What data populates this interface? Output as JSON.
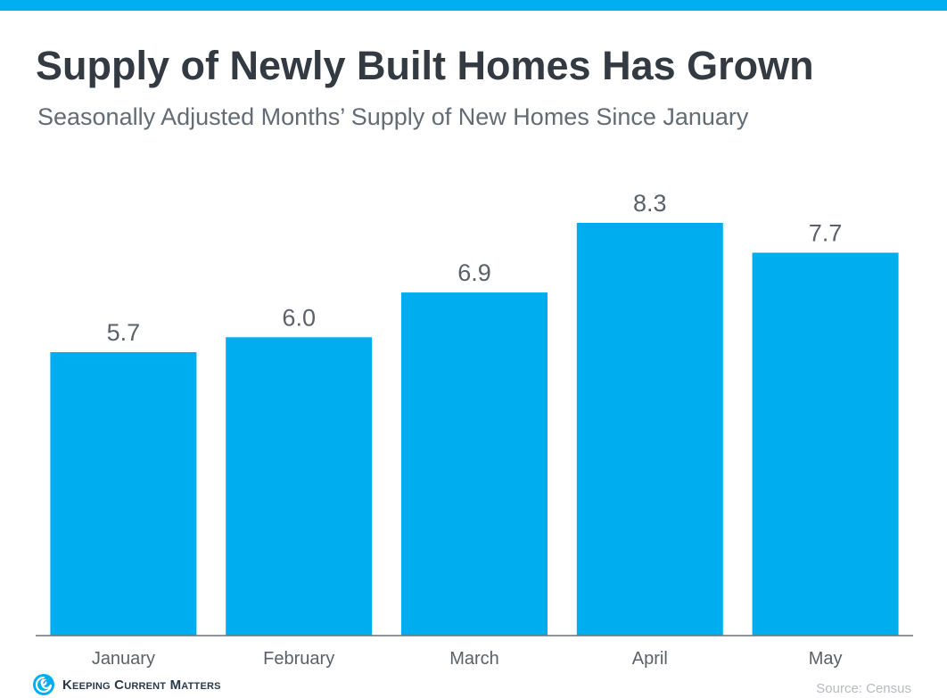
{
  "header": {
    "title": "Supply of Newly Built Homes Has Grown",
    "subtitle": "Seasonally Adjusted Months’ Supply of New Homes Since January"
  },
  "footer": {
    "brand": "Keeping Current Matters",
    "source": "Source: Census"
  },
  "colors": {
    "accent": "#00aeef",
    "bar": "#00aeef",
    "title": "#333a42",
    "label": "#5a6168"
  },
  "chart_data": {
    "type": "bar",
    "title": "Supply of Newly Built Homes Has Grown",
    "subtitle": "Seasonally Adjusted Months’ Supply of New Homes Since January",
    "categories": [
      "January",
      "February",
      "March",
      "April",
      "May"
    ],
    "values": [
      5.7,
      6.0,
      6.9,
      8.3,
      7.7
    ],
    "value_labels": [
      "5.7",
      "6.0",
      "6.9",
      "8.3",
      "7.7"
    ],
    "xlabel": "",
    "ylabel": "",
    "ylim": [
      0,
      8.3
    ],
    "grid": false,
    "legend": "none"
  }
}
